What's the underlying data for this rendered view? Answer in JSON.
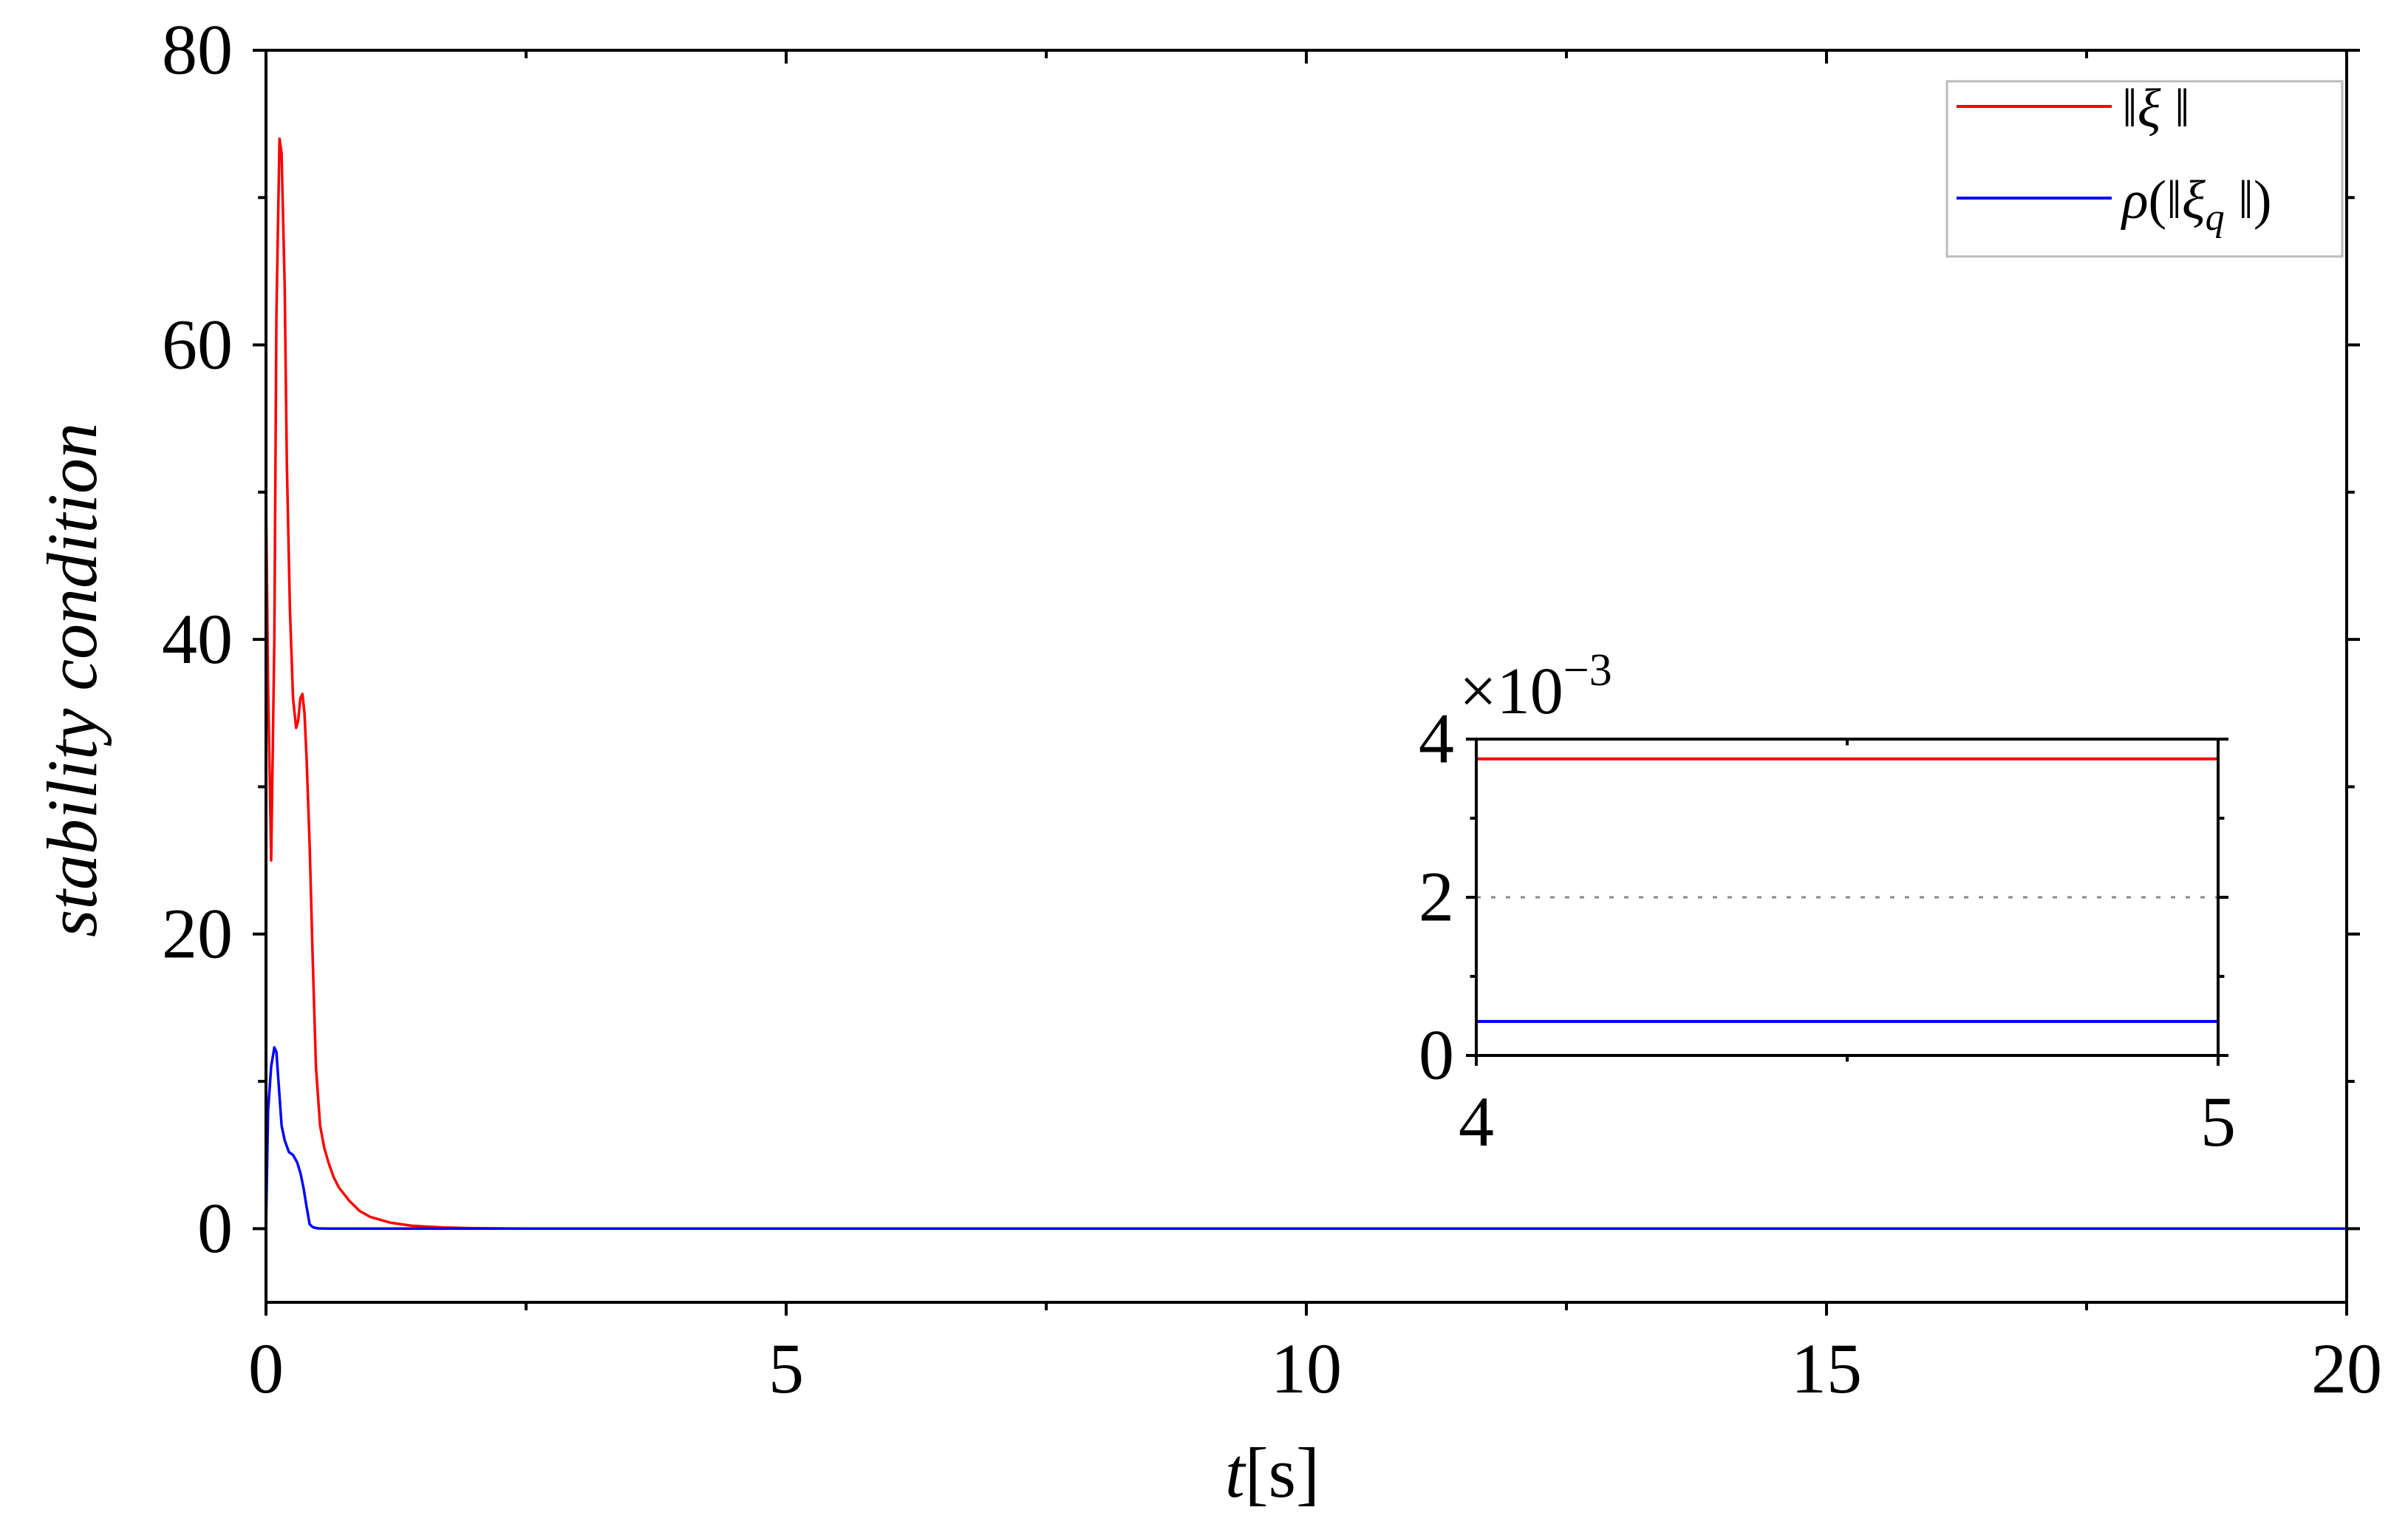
{
  "chart_data": [
    {
      "type": "line",
      "title": "",
      "xlabel": "t[s]",
      "xlabel_italic_part": "t",
      "xlabel_unit_part": "[s]",
      "ylabel": "stability condition",
      "xlim": [
        0,
        20
      ],
      "ylim": [
        -5,
        80
      ],
      "x_ticks": [
        0,
        5,
        10,
        15,
        20
      ],
      "y_ticks": [
        0,
        20,
        40,
        60,
        80
      ],
      "grid": false,
      "legend_position": "top-right",
      "series": [
        {
          "name": "||ξ||",
          "color": "#ff0000",
          "x": [
            0,
            0.02,
            0.05,
            0.08,
            0.1,
            0.13,
            0.15,
            0.18,
            0.2,
            0.23,
            0.26,
            0.29,
            0.31,
            0.33,
            0.35,
            0.37,
            0.39,
            0.42,
            0.45,
            0.48,
            0.52,
            0.56,
            0.6,
            0.65,
            0.7,
            0.8,
            0.9,
            1.0,
            1.2,
            1.4,
            1.7,
            2.0,
            2.5,
            3,
            5,
            10,
            15,
            20
          ],
          "y": [
            50,
            37,
            25,
            40,
            62,
            74,
            73,
            64,
            52,
            42,
            36,
            34,
            34.5,
            36,
            36.3,
            35,
            32,
            26,
            18,
            11,
            7,
            5.5,
            4.5,
            3.5,
            2.8,
            1.9,
            1.2,
            0.8,
            0.4,
            0.2,
            0.08,
            0.03,
            0.01,
            0.004,
            0.004,
            0.004,
            0.004,
            0.004
          ]
        },
        {
          "name": "ρ(||ξq||)",
          "color": "#0000ff",
          "x": [
            0,
            0.02,
            0.05,
            0.08,
            0.1,
            0.12,
            0.15,
            0.18,
            0.22,
            0.26,
            0.3,
            0.33,
            0.36,
            0.39,
            0.42,
            0.45,
            0.5,
            0.6,
            1.0,
            2.0,
            5,
            10,
            15,
            20
          ],
          "y": [
            0,
            8,
            11,
            12.3,
            12,
            10,
            7,
            6,
            5.2,
            5,
            4.5,
            3.8,
            2.8,
            1.5,
            0.3,
            0.1,
            0.02,
            0.0008,
            0.0004,
            0.0004,
            0.0004,
            0.0004,
            0.0004,
            0.0004
          ]
        }
      ]
    },
    {
      "type": "line",
      "inset": true,
      "title": "",
      "xlabel": "",
      "ylabel": "",
      "multiplier_label": "×10−3",
      "multiplier_base": "×10",
      "multiplier_exp": "−3",
      "xlim": [
        4,
        5
      ],
      "ylim": [
        0,
        4
      ],
      "x_ticks": [
        4,
        5
      ],
      "y_ticks": [
        0,
        2,
        4
      ],
      "reference_line": 2,
      "series": [
        {
          "name": "||ξ||",
          "color": "#ff0000",
          "x": [
            4,
            5
          ],
          "y": [
            3.75,
            3.75
          ]
        },
        {
          "name": "ρ(||ξq||)",
          "color": "#0000ff",
          "x": [
            4,
            5
          ],
          "y": [
            0.43,
            0.43
          ]
        }
      ]
    }
  ]
}
